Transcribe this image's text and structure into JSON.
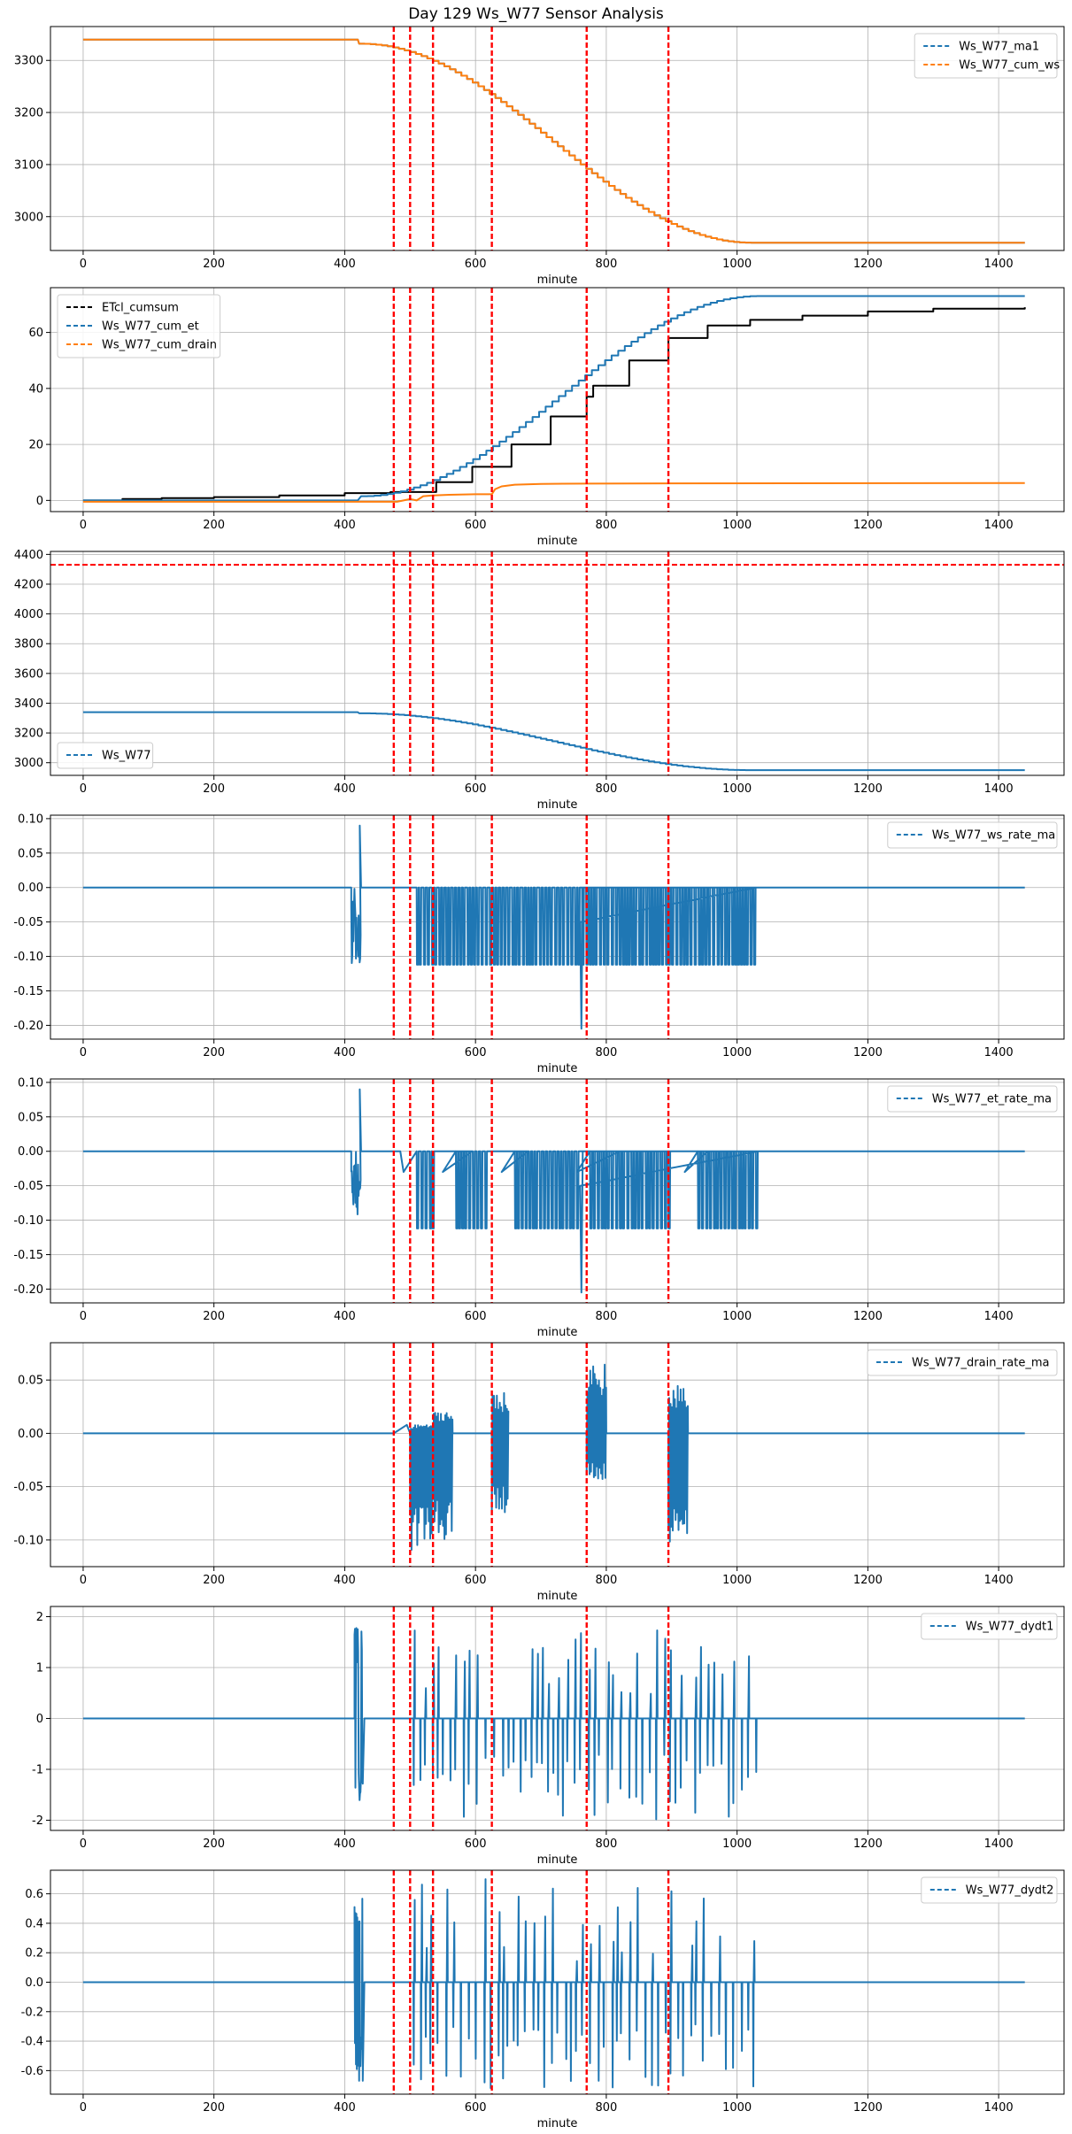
{
  "title": "Day 129 Ws_W77 Sensor Analysis",
  "colors": {
    "blue": "#1f77b4",
    "orange": "#ff7f0e",
    "black": "#000000",
    "red": "#ff0000",
    "grid": "#b0b0b0"
  },
  "chart_data": [
    {
      "type": "line",
      "xlabel": "minute",
      "xlim": [
        -50,
        1500
      ],
      "ylim": [
        2935,
        3365
      ],
      "xticks": [
        0,
        200,
        400,
        600,
        800,
        1000,
        1200,
        1400
      ],
      "yticks": [
        3000,
        3100,
        3200,
        3300
      ],
      "ytick_labels": [
        "3000",
        "3100",
        "3200",
        "3300"
      ],
      "legend": "top-right",
      "vlines": [
        475,
        500,
        535,
        625,
        770,
        895
      ],
      "series": [
        {
          "name": "Ws_W77_ma1",
          "color": "#1f77b4",
          "style": "dashed",
          "gen": "ws",
          "start": 3340,
          "end": 2950
        },
        {
          "name": "Ws_W77_cum_ws",
          "color": "#ff7f0e",
          "style": "solid",
          "gen": "ws",
          "start": 3340,
          "end": 2950
        }
      ]
    },
    {
      "type": "line",
      "xlabel": "minute",
      "xlim": [
        -50,
        1500
      ],
      "ylim": [
        -4,
        76
      ],
      "xticks": [
        0,
        200,
        400,
        600,
        800,
        1000,
        1200,
        1400
      ],
      "yticks": [
        0,
        20,
        40,
        60
      ],
      "ytick_labels": [
        "0",
        "20",
        "40",
        "60"
      ],
      "legend": "top-left",
      "vlines": [
        475,
        500,
        535,
        625,
        770,
        895
      ],
      "series": [
        {
          "name": "ETcl_cumsum",
          "color": "#000000",
          "style": "dashed",
          "gen": "etcl"
        },
        {
          "name": "Ws_W77_cum_et",
          "color": "#1f77b4",
          "style": "dashed",
          "gen": "cumet"
        },
        {
          "name": "Ws_W77_cum_drain",
          "color": "#ff7f0e",
          "style": "dashed",
          "gen": "drain"
        }
      ]
    },
    {
      "type": "line",
      "xlabel": "minute",
      "xlim": [
        -50,
        1500
      ],
      "ylim": [
        2915,
        4420
      ],
      "xticks": [
        0,
        200,
        400,
        600,
        800,
        1000,
        1200,
        1400
      ],
      "yticks": [
        3000,
        3200,
        3400,
        3600,
        3800,
        4000,
        4200,
        4400
      ],
      "ytick_labels": [
        "3000",
        "3200",
        "3400",
        "3600",
        "3800",
        "4000",
        "4200",
        "4400"
      ],
      "legend": "bottom-left",
      "hline": 4330,
      "vlines": [
        475,
        500,
        535,
        625,
        770,
        895
      ],
      "series": [
        {
          "name": "Ws_W77",
          "color": "#1f77b4",
          "style": "dashed",
          "gen": "ws",
          "start": 3340,
          "end": 2950
        }
      ]
    },
    {
      "type": "line",
      "xlabel": "minute",
      "xlim": [
        -50,
        1500
      ],
      "ylim": [
        -0.22,
        0.105
      ],
      "xticks": [
        0,
        200,
        400,
        600,
        800,
        1000,
        1200,
        1400
      ],
      "yticks": [
        -0.2,
        -0.15,
        -0.1,
        -0.05,
        0.0,
        0.05,
        0.1
      ],
      "ytick_labels": [
        "-0.20",
        "-0.15",
        "-0.10",
        "-0.05",
        "0.00",
        "0.05",
        "0.10"
      ],
      "legend": "top-right",
      "vlines": [
        475,
        500,
        535,
        625,
        770,
        895
      ],
      "series": [
        {
          "name": "Ws_W77_ws_rate_ma",
          "color": "#1f77b4",
          "style": "dashed",
          "gen": "rate",
          "gaps": false
        }
      ]
    },
    {
      "type": "line",
      "xlabel": "minute",
      "xlim": [
        -50,
        1500
      ],
      "ylim": [
        -0.22,
        0.105
      ],
      "xticks": [
        0,
        200,
        400,
        600,
        800,
        1000,
        1200,
        1400
      ],
      "yticks": [
        -0.2,
        -0.15,
        -0.1,
        -0.05,
        0.0,
        0.05,
        0.1
      ],
      "ytick_labels": [
        "-0.20",
        "-0.15",
        "-0.10",
        "-0.05",
        "0.00",
        "0.05",
        "0.10"
      ],
      "legend": "top-right",
      "vlines": [
        475,
        500,
        535,
        625,
        770,
        895
      ],
      "series": [
        {
          "name": "Ws_W77_et_rate_ma",
          "color": "#1f77b4",
          "style": "dashed",
          "gen": "rate",
          "gaps": true
        }
      ]
    },
    {
      "type": "line",
      "xlabel": "minute",
      "xlim": [
        -50,
        1500
      ],
      "ylim": [
        -0.125,
        0.085
      ],
      "xticks": [
        0,
        200,
        400,
        600,
        800,
        1000,
        1200,
        1400
      ],
      "yticks": [
        -0.1,
        -0.05,
        0.0,
        0.05
      ],
      "ytick_labels": [
        "-0.10",
        "-0.05",
        "0.00",
        "0.05"
      ],
      "legend": "top-right",
      "vlines": [
        475,
        500,
        535,
        625,
        770,
        895
      ],
      "series": [
        {
          "name": "Ws_W77_drain_rate_ma",
          "color": "#1f77b4",
          "style": "dashed",
          "gen": "drainrate"
        }
      ]
    },
    {
      "type": "line",
      "xlabel": "minute",
      "xlim": [
        -50,
        1500
      ],
      "ylim": [
        -2.2,
        2.2
      ],
      "xticks": [
        0,
        200,
        400,
        600,
        800,
        1000,
        1200,
        1400
      ],
      "yticks": [
        -2,
        -1,
        0,
        1,
        2
      ],
      "ytick_labels": [
        "-2",
        "-1",
        "0",
        "1",
        "2"
      ],
      "legend": "top-right",
      "vlines": [
        475,
        500,
        535,
        625,
        770,
        895
      ],
      "series": [
        {
          "name": "Ws_W77_dydt1",
          "color": "#1f77b4",
          "style": "dashed",
          "gen": "spikes",
          "up": 1.9,
          "down": -2.0
        }
      ]
    },
    {
      "type": "line",
      "xlabel": "minute",
      "xlim": [
        -50,
        1500
      ],
      "ylim": [
        -0.76,
        0.76
      ],
      "xticks": [
        0,
        200,
        400,
        600,
        800,
        1000,
        1200,
        1400
      ],
      "yticks": [
        -0.6,
        -0.4,
        -0.2,
        0.0,
        0.2,
        0.4,
        0.6
      ],
      "ytick_labels": [
        "-0.6",
        "-0.4",
        "-0.2",
        "0.0",
        "0.2",
        "0.4",
        "0.6"
      ],
      "legend": "top-right",
      "vlines": [
        475,
        500,
        535,
        625,
        770,
        895
      ],
      "series": [
        {
          "name": "Ws_W77_dydt2",
          "color": "#1f77b4",
          "style": "dashed",
          "gen": "spikes",
          "up": 0.7,
          "down": -0.72
        }
      ]
    }
  ]
}
